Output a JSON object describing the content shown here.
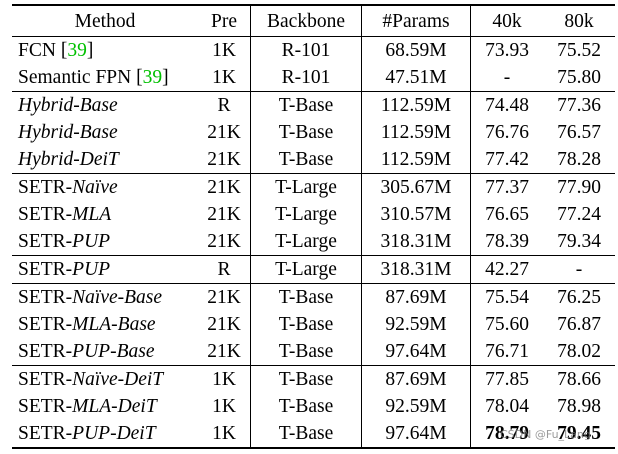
{
  "columns": [
    "Method",
    "Pre",
    "Backbone",
    "#Params",
    "40k",
    "80k"
  ],
  "groups": [
    [
      {
        "method_prefix": "FCN ",
        "method_italic": "",
        "ref": "39",
        "pre": "1K",
        "backbone": "R-101",
        "params": "68.59M",
        "k40": "73.93",
        "k80": "75.52"
      },
      {
        "method_prefix": "Semantic FPN ",
        "method_italic": "",
        "ref": "39",
        "pre": "1K",
        "backbone": "R-101",
        "params": "47.51M",
        "k40": "-",
        "k80": "75.80"
      }
    ],
    [
      {
        "method_prefix": "",
        "method_italic": "Hybrid-Base",
        "pre": "R",
        "backbone": "T-Base",
        "params": "112.59M",
        "k40": "74.48",
        "k80": "77.36"
      },
      {
        "method_prefix": "",
        "method_italic": "Hybrid-Base",
        "pre": "21K",
        "backbone": "T-Base",
        "params": "112.59M",
        "k40": "76.76",
        "k80": "76.57"
      },
      {
        "method_prefix": "",
        "method_italic": "Hybrid-DeiT",
        "pre": "21K",
        "backbone": "T-Base",
        "params": "112.59M",
        "k40": "77.42",
        "k80": "78.28"
      }
    ],
    [
      {
        "method_prefix": "SETR-",
        "method_italic": "Naïve",
        "pre": "21K",
        "backbone": "T-Large",
        "params": "305.67M",
        "k40": "77.37",
        "k80": "77.90"
      },
      {
        "method_prefix": "SETR-",
        "method_italic": "MLA",
        "pre": "21K",
        "backbone": "T-Large",
        "params": "310.57M",
        "k40": "76.65",
        "k80": "77.24"
      },
      {
        "method_prefix": "SETR-",
        "method_italic": "PUP",
        "pre": "21K",
        "backbone": "T-Large",
        "params": "318.31M",
        "k40": "78.39",
        "k80": "79.34"
      }
    ],
    [
      {
        "method_prefix": "SETR-",
        "method_italic": "PUP",
        "pre": "R",
        "backbone": "T-Large",
        "params": "318.31M",
        "k40": "42.27",
        "k80": "-"
      }
    ],
    [
      {
        "method_prefix": "SETR-",
        "method_italic": "Naïve-Base",
        "pre": "21K",
        "backbone": "T-Base",
        "params": "87.69M",
        "k40": "75.54",
        "k80": "76.25"
      },
      {
        "method_prefix": "SETR-",
        "method_italic": "MLA-Base",
        "pre": "21K",
        "backbone": "T-Base",
        "params": "92.59M",
        "k40": "75.60",
        "k80": "76.87"
      },
      {
        "method_prefix": "SETR-",
        "method_italic": "PUP-Base",
        "pre": "21K",
        "backbone": "T-Base",
        "params": "97.64M",
        "k40": "76.71",
        "k80": "78.02"
      }
    ],
    [
      {
        "method_prefix": "SETR-",
        "method_italic": "Naïve-DeiT",
        "pre": "1K",
        "backbone": "T-Base",
        "params": "87.69M",
        "k40": "77.85",
        "k80": "78.66"
      },
      {
        "method_prefix": "SETR-",
        "method_italic": "MLA-DeiT",
        "pre": "1K",
        "backbone": "T-Base",
        "params": "92.59M",
        "k40": "78.04",
        "k80": "78.98"
      },
      {
        "method_prefix": "SETR-",
        "method_italic": "PUP-DeiT",
        "pre": "1K",
        "backbone": "T-Base",
        "params": "97.64M",
        "k40": "78.79",
        "k80": "79.45",
        "bold": true
      }
    ]
  ],
  "watermark": "CSDN @Fu_Lang"
}
